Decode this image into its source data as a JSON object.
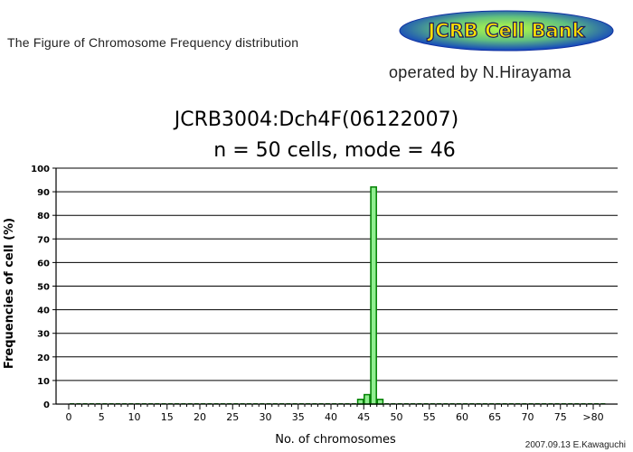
{
  "header": {
    "figure_label": "The Figure of Chromosome Frequency distribution",
    "logo_text": "JCRB Cell Bank",
    "operated_by": "operated by N.Hirayama"
  },
  "footer": {
    "credit": "2007.09.13 E.Kawaguchi"
  },
  "colors": {
    "bar_fill": "#90ee90",
    "bar_stroke": "#008000",
    "logo_gradient_center": "#b8ff40",
    "logo_gradient_edge": "#1040c0",
    "logo_text": "#ffe000"
  },
  "chart_data": {
    "type": "bar",
    "title": "JCRB3004:Dch4F(06122007)",
    "subtitle": "n = 50 cells, mode = 46",
    "xlabel": "No. of chromosomes",
    "ylabel": "Frequencies of cell (%)",
    "ylim": [
      0,
      100
    ],
    "yticks": [
      0,
      10,
      20,
      30,
      40,
      50,
      60,
      70,
      80,
      90,
      100
    ],
    "xlim": [
      0,
      81
    ],
    "xtick_labels": [
      "0",
      "5",
      "10",
      "15",
      "20",
      "25",
      "30",
      "35",
      "40",
      "45",
      "50",
      "55",
      "60",
      "65",
      "70",
      "75",
      ">80"
    ],
    "grid": true,
    "x": [
      44,
      45,
      46,
      47
    ],
    "values": [
      2,
      4,
      92,
      2
    ]
  }
}
